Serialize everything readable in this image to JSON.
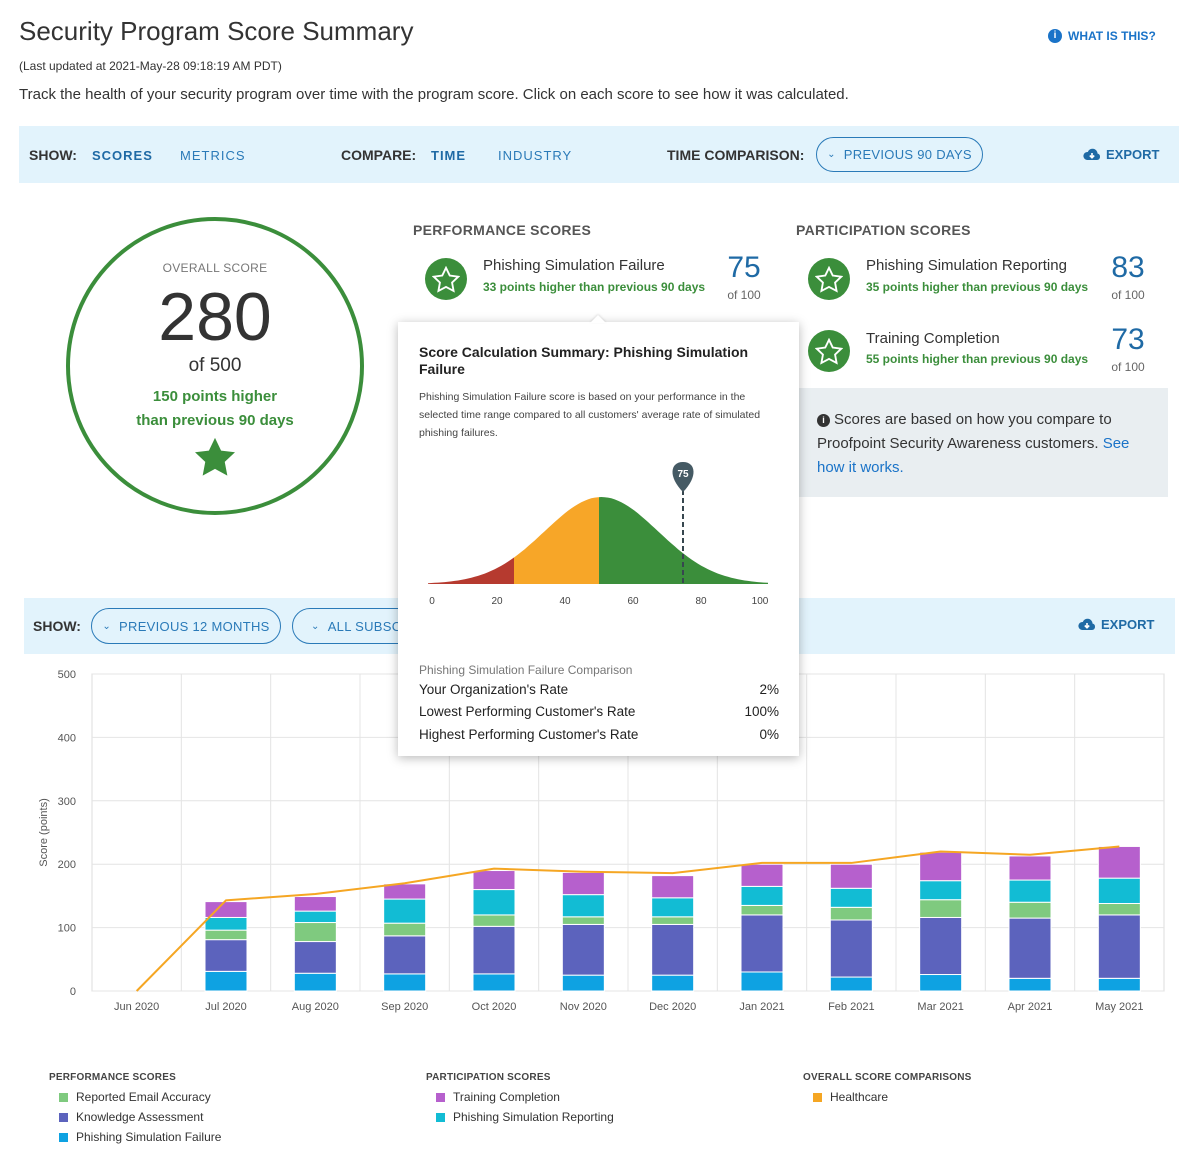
{
  "header": {
    "title": "Security Program Score Summary",
    "updated": "(Last updated at 2021-May-28 09:18:19 AM PDT)",
    "description": "Track the health of your security program over time with the program score. Click on each score to see how it was calculated.",
    "what_is_this": "WHAT IS THIS?"
  },
  "toolbar": {
    "show_label": "SHOW:",
    "scores": "SCORES",
    "metrics": "METRICS",
    "compare_label": "COMPARE:",
    "time": "TIME",
    "industry": "INDUSTRY",
    "time_comparison_label": "TIME COMPARISON:",
    "time_comparison_value": "PREVIOUS 90 DAYS",
    "export": "EXPORT"
  },
  "overall": {
    "label": "OVERALL SCORE",
    "value": "280",
    "of": "of 500",
    "change_line1": "150 points higher",
    "change_line2": "than previous 90 days"
  },
  "performance": {
    "heading": "PERFORMANCE SCORES",
    "items": [
      {
        "name": "Phishing Simulation Failure",
        "sub": "33 points higher than previous 90 days",
        "value": "75",
        "of": "of 100"
      }
    ]
  },
  "participation": {
    "heading": "PARTICIPATION SCORES",
    "items": [
      {
        "name": "Phishing Simulation Reporting",
        "sub": "35 points higher than previous 90 days",
        "value": "83",
        "of": "of 100"
      },
      {
        "name": "Training Completion",
        "sub": "55 points higher than previous 90 days",
        "value": "73",
        "of": "of 100"
      }
    ]
  },
  "info": {
    "text": "Scores are based on how you compare to Proofpoint Security Awareness customers.",
    "link": "See how it works."
  },
  "popover": {
    "title": "Score Calculation Summary: Phishing Simulation Failure",
    "desc": "Phishing Simulation Failure score is based on your performance in the selected time range compared to all customers' average rate of simulated phishing failures.",
    "marker": "75",
    "axis": [
      "0",
      "20",
      "40",
      "60",
      "80",
      "100"
    ],
    "comparison_heading": "Phishing Simulation Failure Comparison",
    "rows": [
      {
        "label": "Your Organization's Rate",
        "value": "2%"
      },
      {
        "label": "Lowest Performing Customer's Rate",
        "value": "100%"
      },
      {
        "label": "Highest Performing Customer's Rate",
        "value": "0%"
      }
    ]
  },
  "toolbar2": {
    "show_label": "SHOW:",
    "period": "PREVIOUS 12 MONTHS",
    "subscription": "ALL SUBSCRI",
    "export": "EXPORT"
  },
  "colors": {
    "reported": "#7fca7f",
    "knowledge": "#5c63bd",
    "phishing_failure": "#0ea2e2",
    "training": "#b660cd",
    "phishing_reporting": "#12bcd4",
    "healthcare": "#f5a623"
  },
  "chart_data": {
    "type": "bar",
    "stacked": true,
    "ylabel": "Score (points)",
    "ylim": [
      0,
      500
    ],
    "yticks": [
      "0",
      "100",
      "200",
      "300",
      "400",
      "500"
    ],
    "categories": [
      "Jun 2020",
      "Jul 2020",
      "Aug 2020",
      "Sep 2020",
      "Oct 2020",
      "Nov 2020",
      "Dec 2020",
      "Jan 2021",
      "Feb 2021",
      "Mar 2021",
      "Apr 2021",
      "May 2021"
    ],
    "series": [
      {
        "name": "Phishing Simulation Failure",
        "values": [
          0,
          31,
          28,
          27,
          27,
          25,
          25,
          30,
          22,
          26,
          20,
          20
        ]
      },
      {
        "name": "Knowledge Assessment",
        "values": [
          0,
          50,
          50,
          60,
          75,
          80,
          80,
          90,
          90,
          90,
          95,
          100
        ]
      },
      {
        "name": "Reported Email Accuracy",
        "values": [
          0,
          15,
          30,
          20,
          18,
          12,
          12,
          15,
          20,
          28,
          25,
          18
        ]
      },
      {
        "name": "Phishing Simulation Reporting",
        "values": [
          0,
          20,
          18,
          38,
          40,
          35,
          30,
          30,
          30,
          30,
          35,
          40
        ]
      },
      {
        "name": "Training Completion",
        "values": [
          0,
          25,
          23,
          24,
          30,
          35,
          35,
          35,
          38,
          45,
          38,
          50
        ]
      }
    ],
    "line": {
      "name": "Healthcare",
      "values": [
        0,
        143,
        153,
        170,
        193,
        188,
        186,
        202,
        202,
        220,
        215,
        228
      ]
    },
    "legend": {
      "groups": [
        {
          "heading": "PERFORMANCE SCORES",
          "items": [
            "Reported Email Accuracy",
            "Knowledge Assessment",
            "Phishing Simulation Failure"
          ]
        },
        {
          "heading": "PARTICIPATION SCORES",
          "items": [
            "Training Completion",
            "Phishing Simulation Reporting"
          ]
        },
        {
          "heading": "OVERALL SCORE COMPARISONS",
          "items": [
            "Healthcare"
          ]
        }
      ]
    }
  }
}
